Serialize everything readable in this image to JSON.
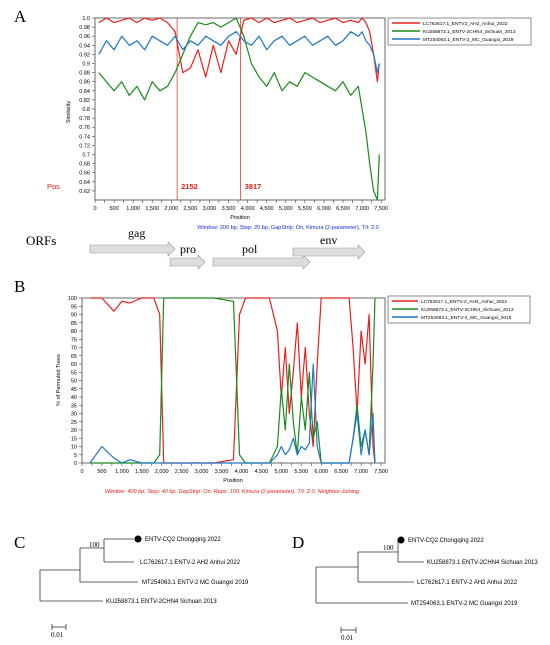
{
  "panel_labels": {
    "a": "A",
    "b": "B",
    "c": "C",
    "d": "D"
  },
  "chart_data": [
    {
      "id": "A",
      "type": "line",
      "xlabel": "Position",
      "ylabel": "Similarity",
      "xlim": [
        0,
        7600
      ],
      "ylim": [
        0.6,
        1.0
      ],
      "x_ticks": [
        0,
        250,
        500,
        750,
        1000,
        1250,
        1500,
        1750,
        2000,
        2250,
        2500,
        2750,
        3000,
        3250,
        3500,
        3750,
        4000,
        4250,
        4500,
        4750,
        5000,
        5250,
        5500,
        5750,
        6000,
        6250,
        6500,
        6750,
        7000,
        7250,
        7500
      ],
      "x_tick_labels": [
        "0",
        "",
        "500",
        "",
        "1,000",
        "",
        "1,500",
        "",
        "2,000",
        "",
        "2,500",
        "",
        "3,000",
        "",
        "3,500",
        "",
        "4,000",
        "",
        "4,500",
        "",
        "5,000",
        "",
        "5,500",
        "",
        "6,000",
        "",
        "6,500",
        "",
        "7,000",
        "",
        "7,500"
      ],
      "y_ticks": [
        0.62,
        0.64,
        0.66,
        0.68,
        0.7,
        0.72,
        0.74,
        0.76,
        0.78,
        0.8,
        0.82,
        0.84,
        0.86,
        0.88,
        0.9,
        0.92,
        0.94,
        0.96,
        0.98,
        1.0
      ],
      "y_tick_labels": [
        "0.62",
        "0.64",
        "0.66",
        "0.68",
        "0.7",
        "0.72",
        "0.74",
        "0.76",
        "0.78",
        "0.8",
        "0.82",
        "0.84",
        "0.86",
        "0.88",
        "0.9",
        "0.92",
        "0.94",
        "0.96",
        "0.98",
        "1.0"
      ],
      "breakpoints": [
        2152,
        3817
      ],
      "pos_label": "Pos",
      "breakpoint_labels": [
        "2152",
        "3817"
      ],
      "legend_position": "top-right",
      "footer": "Window: 200 bp, Step: 20 bp, GapStrip: On, Kimura (2-parameter), T/t: 2.0",
      "x": [
        100,
        300,
        500,
        700,
        900,
        1100,
        1300,
        1500,
        1700,
        1900,
        2100,
        2300,
        2500,
        2700,
        2900,
        3100,
        3300,
        3500,
        3700,
        3900,
        4100,
        4300,
        4500,
        4700,
        4900,
        5100,
        5300,
        5500,
        5700,
        5900,
        6100,
        6300,
        6500,
        6700,
        6900,
        7000,
        7100,
        7200,
        7300,
        7400,
        7450
      ],
      "series": [
        {
          "name": "LC762617.1_ENTV2_AH2_Anhui_2022",
          "color": "#e8201c",
          "values": [
            0.99,
            1.0,
            0.99,
            0.995,
            1.0,
            0.99,
            1.0,
            0.995,
            1.0,
            0.99,
            0.97,
            0.88,
            0.89,
            0.93,
            0.87,
            0.94,
            0.88,
            0.95,
            0.92,
            0.995,
            1.0,
            0.99,
            1.0,
            0.99,
            0.995,
            1.0,
            0.99,
            0.995,
            1.0,
            0.99,
            0.995,
            1.0,
            0.99,
            0.995,
            0.99,
            1.0,
            0.99,
            0.97,
            0.92,
            0.86,
            0.9
          ]
        },
        {
          "name": "KU258873.1_ENTV-2CHN4_Sichuan_2013",
          "color": "#1a8a1a",
          "values": [
            0.88,
            0.86,
            0.84,
            0.86,
            0.83,
            0.85,
            0.82,
            0.86,
            0.84,
            0.85,
            0.88,
            0.92,
            0.96,
            0.99,
            0.985,
            0.99,
            0.98,
            0.99,
            1.0,
            0.96,
            0.9,
            0.87,
            0.85,
            0.88,
            0.84,
            0.86,
            0.85,
            0.88,
            0.87,
            0.86,
            0.85,
            0.84,
            0.86,
            0.83,
            0.85,
            0.8,
            0.75,
            0.68,
            0.62,
            0.6,
            0.7
          ]
        },
        {
          "name": "MT254063.1_ENTV-2_MC_Guangxi_2019",
          "color": "#1f77c8",
          "values": [
            0.92,
            0.95,
            0.93,
            0.96,
            0.94,
            0.95,
            0.93,
            0.96,
            0.95,
            0.94,
            0.96,
            0.93,
            0.95,
            0.94,
            0.96,
            0.95,
            0.94,
            0.96,
            0.97,
            0.95,
            0.94,
            0.96,
            0.93,
            0.95,
            0.96,
            0.94,
            0.95,
            0.96,
            0.94,
            0.95,
            0.96,
            0.94,
            0.95,
            0.97,
            0.96,
            0.97,
            0.95,
            0.94,
            0.92,
            0.88,
            0.9
          ]
        }
      ]
    },
    {
      "id": "B",
      "type": "line",
      "xlabel": "Position",
      "ylabel": "% of Permuted Trees",
      "xlim": [
        0,
        7600
      ],
      "ylim": [
        0,
        100
      ],
      "x_ticks": [
        0,
        250,
        500,
        750,
        1000,
        1250,
        1500,
        1750,
        2000,
        2250,
        2500,
        2750,
        3000,
        3250,
        3500,
        3750,
        4000,
        4250,
        4500,
        4750,
        5000,
        5250,
        5500,
        5750,
        6000,
        6250,
        6500,
        6750,
        7000,
        7250,
        7500
      ],
      "x_tick_labels": [
        "0",
        "",
        "500",
        "",
        "1,000",
        "",
        "1,500",
        "",
        "2,000",
        "",
        "2,500",
        "",
        "3,000",
        "",
        "3,500",
        "",
        "4,000",
        "",
        "4,500",
        "",
        "5,000",
        "",
        "5,500",
        "",
        "6,000",
        "",
        "6,500",
        "",
        "7,000",
        "",
        "7,500"
      ],
      "y_ticks": [
        0,
        5,
        10,
        15,
        20,
        25,
        30,
        35,
        40,
        45,
        50,
        55,
        60,
        65,
        70,
        75,
        80,
        85,
        90,
        95,
        100
      ],
      "y_tick_labels": [
        "0",
        "5",
        "10",
        "15",
        "20",
        "25",
        "30",
        "35",
        "40",
        "45",
        "50",
        "55",
        "60",
        "65",
        "70",
        "75",
        "80",
        "85",
        "90",
        "95",
        "100"
      ],
      "legend_position": "top-right",
      "footer": "Window: 400 bp, Step: 40 bp, GapStrip: On, Reps: 100, Kimura (2-parameter), T/t: 2.0, Neighbor-Joining",
      "x": [
        200,
        500,
        800,
        1000,
        1200,
        1500,
        1800,
        1950,
        2050,
        2300,
        2800,
        3300,
        3800,
        3950,
        4100,
        4400,
        4700,
        4900,
        5000,
        5100,
        5200,
        5300,
        5400,
        5500,
        5600,
        5700,
        5800,
        5900,
        6000,
        6200,
        6500,
        6700,
        6800,
        6900,
        7000,
        7100,
        7200,
        7300,
        7350
      ],
      "series": [
        {
          "name": "LC762617.1_ENTV-2_AH2_Anhui_2022",
          "color": "#e8201c",
          "values": [
            100,
            100,
            92,
            98,
            97,
            100,
            100,
            90,
            0,
            0,
            0,
            0,
            2,
            90,
            100,
            100,
            100,
            80,
            40,
            70,
            30,
            55,
            85,
            40,
            70,
            30,
            10,
            60,
            100,
            100,
            100,
            100,
            70,
            30,
            80,
            60,
            90,
            10,
            0
          ]
        },
        {
          "name": "KU258873.1_ENTV-2CHN4_Sichuan_2013",
          "color": "#1a8a1a",
          "values": [
            0,
            0,
            0,
            0,
            0,
            0,
            0,
            5,
            100,
            100,
            100,
            100,
            98,
            5,
            0,
            0,
            0,
            10,
            45,
            20,
            60,
            25,
            5,
            40,
            20,
            55,
            15,
            25,
            0,
            0,
            0,
            0,
            15,
            35,
            10,
            20,
            5,
            60,
            100
          ]
        },
        {
          "name": "MT254063.1_ENTV-2_MC_Guangxi_2019",
          "color": "#1f77c8",
          "values": [
            0,
            10,
            3,
            0,
            2,
            0,
            0,
            0,
            0,
            0,
            0,
            0,
            0,
            0,
            0,
            0,
            0,
            5,
            10,
            5,
            8,
            15,
            5,
            10,
            8,
            12,
            60,
            10,
            0,
            0,
            0,
            0,
            15,
            30,
            5,
            20,
            5,
            30,
            0
          ]
        }
      ]
    }
  ],
  "orfs": {
    "title": "ORFs",
    "items": [
      "gag",
      "pro",
      "pol",
      "env"
    ]
  },
  "tree_c": {
    "taxa": [
      "ENTV-CQ2 Chongqing 2022",
      "LC762617.1 ENTV-2 AH2 Anhui 2022",
      "MT254063.1 ENTV-2 MC Guangxi 2019",
      "KU258873.1 ENTV-2CHN4 Sichuan 2013"
    ],
    "bootstrap": "100",
    "scale": "0.01"
  },
  "tree_d": {
    "taxa": [
      "ENTV-CQ2 Chongqing 2022",
      "KU258873.1 ENTV-2CHN4 Sichuan 2013",
      "LC762617.1 ENTV-2 AH2 Anhui 2022",
      "MT254063.1 ENTV-2 MC Guangxi 2019"
    ],
    "bootstrap": "100",
    "scale": "0.01"
  }
}
